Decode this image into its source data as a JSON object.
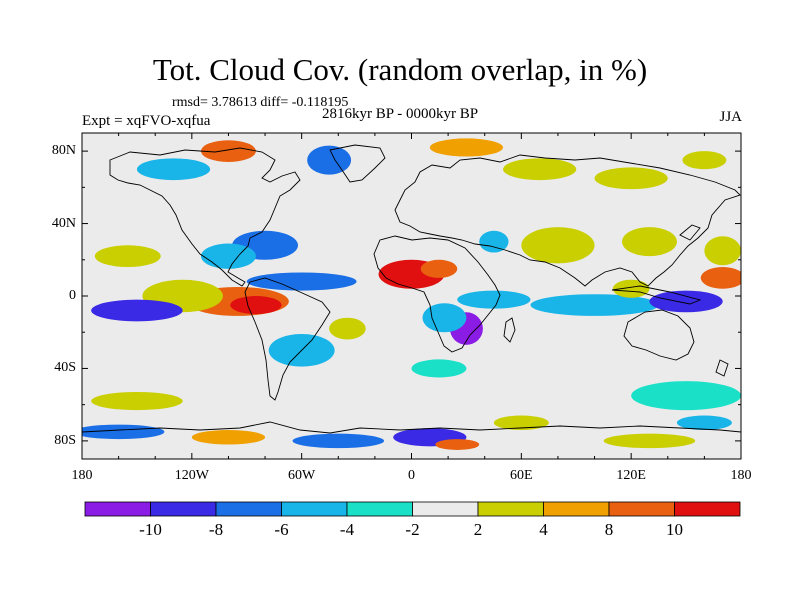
{
  "title": "Tot. Cloud Cov. (random overlap, in %)",
  "stats": "rmsd= 3.78613 diff= -0.118195",
  "period": "2816kyr BP - 0000kyr BP",
  "experiment": "Expt = xqFVO-xqfua",
  "season": "JJA",
  "map": {
    "projection": "cylindrical equidistant",
    "lon_range": [
      -180,
      180
    ],
    "lat_range": [
      -90,
      90
    ],
    "land_fill": "#ebebeb",
    "coastline_color": "#000000"
  },
  "lon_ticks": [
    {
      "value": -180,
      "label": "180"
    },
    {
      "value": -120,
      "label": "120W"
    },
    {
      "value": -60,
      "label": "60W"
    },
    {
      "value": 0,
      "label": "0"
    },
    {
      "value": 60,
      "label": "60E"
    },
    {
      "value": 120,
      "label": "120E"
    },
    {
      "value": 180,
      "label": "180"
    }
  ],
  "lat_ticks": [
    {
      "value": 80,
      "label": "80N"
    },
    {
      "value": 40,
      "label": "40N"
    },
    {
      "value": 0,
      "label": "0"
    },
    {
      "value": -40,
      "label": "40S"
    },
    {
      "value": -80,
      "label": "80S"
    }
  ],
  "colorbar": {
    "levels": [
      -10,
      -8,
      -6,
      -4,
      -2,
      2,
      4,
      8,
      10
    ],
    "labels": [
      "-10",
      "-8",
      "-6",
      "-4",
      "-2",
      "2",
      "4",
      "8",
      "10"
    ],
    "colors": [
      "#8a1ce6",
      "#3a2ae6",
      "#1a6ee6",
      "#19b4e8",
      "#1be0c8",
      "#ebebeb",
      "#c9cf00",
      "#f0a000",
      "#e86010",
      "#e01010"
    ]
  },
  "anomalies": [
    {
      "lon": 0,
      "lat": 12,
      "rx": 18,
      "ry": 8,
      "value": 11
    },
    {
      "lon": 15,
      "lat": 15,
      "rx": 10,
      "ry": 5,
      "value": 9
    },
    {
      "lon": -95,
      "lat": -3,
      "rx": 28,
      "ry": 8,
      "value": 9
    },
    {
      "lon": -85,
      "lat": -5,
      "rx": 14,
      "ry": 5,
      "value": 12
    },
    {
      "lon": -125,
      "lat": 0,
      "rx": 22,
      "ry": 9,
      "value": 4
    },
    {
      "lon": -150,
      "lat": -8,
      "rx": 25,
      "ry": 6,
      "value": -9
    },
    {
      "lon": -60,
      "lat": 8,
      "rx": 30,
      "ry": 5,
      "value": -7
    },
    {
      "lon": -80,
      "lat": 28,
      "rx": 18,
      "ry": 8,
      "value": -6
    },
    {
      "lon": -100,
      "lat": 22,
      "rx": 15,
      "ry": 7,
      "value": -4
    },
    {
      "lon": -155,
      "lat": 22,
      "rx": 18,
      "ry": 6,
      "value": 4
    },
    {
      "lon": 30,
      "lat": -18,
      "rx": 9,
      "ry": 9,
      "value": -10
    },
    {
      "lon": 18,
      "lat": -12,
      "rx": 12,
      "ry": 8,
      "value": -5
    },
    {
      "lon": 45,
      "lat": -2,
      "rx": 20,
      "ry": 5,
      "value": -4
    },
    {
      "lon": 100,
      "lat": -5,
      "rx": 35,
      "ry": 6,
      "value": -4
    },
    {
      "lon": 150,
      "lat": -3,
      "rx": 20,
      "ry": 6,
      "value": -8
    },
    {
      "lon": 120,
      "lat": 4,
      "rx": 10,
      "ry": 5,
      "value": 3
    },
    {
      "lon": 170,
      "lat": 10,
      "rx": 12,
      "ry": 6,
      "value": 9
    },
    {
      "lon": 80,
      "lat": 28,
      "rx": 20,
      "ry": 10,
      "value": 4
    },
    {
      "lon": 130,
      "lat": 30,
      "rx": 15,
      "ry": 8,
      "value": 3
    },
    {
      "lon": 170,
      "lat": 25,
      "rx": 10,
      "ry": 8,
      "value": 3
    },
    {
      "lon": 45,
      "lat": 30,
      "rx": 8,
      "ry": 6,
      "value": -4
    },
    {
      "lon": -60,
      "lat": -30,
      "rx": 18,
      "ry": 9,
      "value": -4
    },
    {
      "lon": -35,
      "lat": -18,
      "rx": 10,
      "ry": 6,
      "value": 3
    },
    {
      "lon": 15,
      "lat": -40,
      "rx": 15,
      "ry": 5,
      "value": -3
    },
    {
      "lon": 150,
      "lat": -55,
      "rx": 30,
      "ry": 8,
      "value": -3
    },
    {
      "lon": -150,
      "lat": -58,
      "rx": 25,
      "ry": 5,
      "value": 3
    },
    {
      "lon": -130,
      "lat": 70,
      "rx": 20,
      "ry": 6,
      "value": -5
    },
    {
      "lon": -100,
      "lat": 80,
      "rx": 15,
      "ry": 6,
      "value": 9
    },
    {
      "lon": -45,
      "lat": 75,
      "rx": 12,
      "ry": 8,
      "value": -7
    },
    {
      "lon": 30,
      "lat": 82,
      "rx": 20,
      "ry": 5,
      "value": 8
    },
    {
      "lon": 70,
      "lat": 70,
      "rx": 20,
      "ry": 6,
      "value": 3
    },
    {
      "lon": 120,
      "lat": 65,
      "rx": 20,
      "ry": 6,
      "value": 4
    },
    {
      "lon": 160,
      "lat": 75,
      "rx": 12,
      "ry": 5,
      "value": 3
    },
    {
      "lon": -160,
      "lat": -75,
      "rx": 25,
      "ry": 4,
      "value": -6
    },
    {
      "lon": -100,
      "lat": -78,
      "rx": 20,
      "ry": 4,
      "value": 5
    },
    {
      "lon": -40,
      "lat": -80,
      "rx": 25,
      "ry": 4,
      "value": -7
    },
    {
      "lon": 10,
      "lat": -78,
      "rx": 20,
      "ry": 5,
      "value": -9
    },
    {
      "lon": 25,
      "lat": -82,
      "rx": 12,
      "ry": 3,
      "value": 10
    },
    {
      "lon": 60,
      "lat": -70,
      "rx": 15,
      "ry": 4,
      "value": 4
    },
    {
      "lon": 130,
      "lat": -80,
      "rx": 25,
      "ry": 4,
      "value": 3
    },
    {
      "lon": 160,
      "lat": -70,
      "rx": 15,
      "ry": 4,
      "value": -4
    }
  ]
}
